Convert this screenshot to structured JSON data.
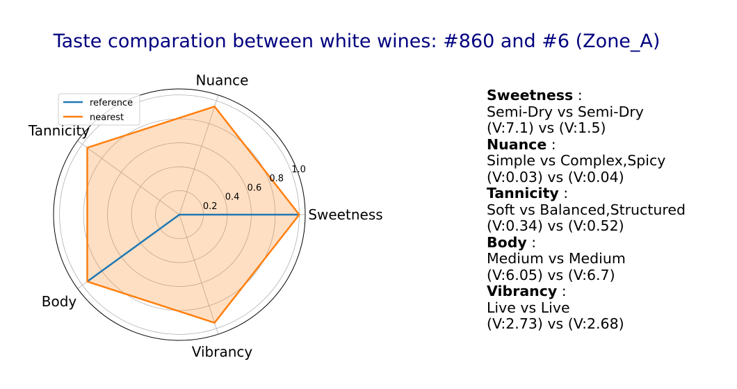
{
  "title": "Taste comparation between white wines: #860 and #6 (Zone_A)",
  "chart_data": {
    "type": "radar",
    "axes": [
      "Sweetness",
      "Nuance",
      "Tannicity",
      "Body",
      "Vibrancy"
    ],
    "series": [
      {
        "name": "reference",
        "color": "#1f77b4",
        "fill": false,
        "values": [
          1.0,
          0.0,
          0.0,
          0.95,
          0.0
        ]
      },
      {
        "name": "nearest",
        "color": "#ff7f0e",
        "fill": true,
        "values": [
          1.0,
          0.95,
          0.95,
          0.95,
          0.95
        ]
      }
    ],
    "rlim": [
      0,
      1.05
    ],
    "rticks": [
      0.2,
      0.4,
      0.6,
      0.8,
      1.0
    ],
    "rtick_labels": [
      "0.2",
      "0.4",
      "0.6",
      "0.8",
      "1.0"
    ],
    "grid": true,
    "legend_position": "upper-left"
  },
  "details": [
    {
      "attribute": "Sweetness",
      "sep": " :",
      "compare": "Semi-Dry vs Semi-Dry",
      "values": "(V:7.1) vs (V:1.5)"
    },
    {
      "attribute": "Nuance",
      "sep": " :",
      "compare": "Simple vs Complex,Spicy",
      "values": "(V:0.03) vs (V:0.04)"
    },
    {
      "attribute": "Tannicity",
      "sep": " :",
      "compare": "Soft vs Balanced,Structured",
      "values": "(V:0.34) vs (V:0.52)"
    },
    {
      "attribute": "Body",
      "sep": " :",
      "compare": "Medium vs Medium",
      "values": "(V:6.05) vs (V:6.7)"
    },
    {
      "attribute": "Vibrancy",
      "sep": " :",
      "compare": "Live vs Live",
      "values": "(V:2.73) vs (V:2.68)"
    }
  ]
}
